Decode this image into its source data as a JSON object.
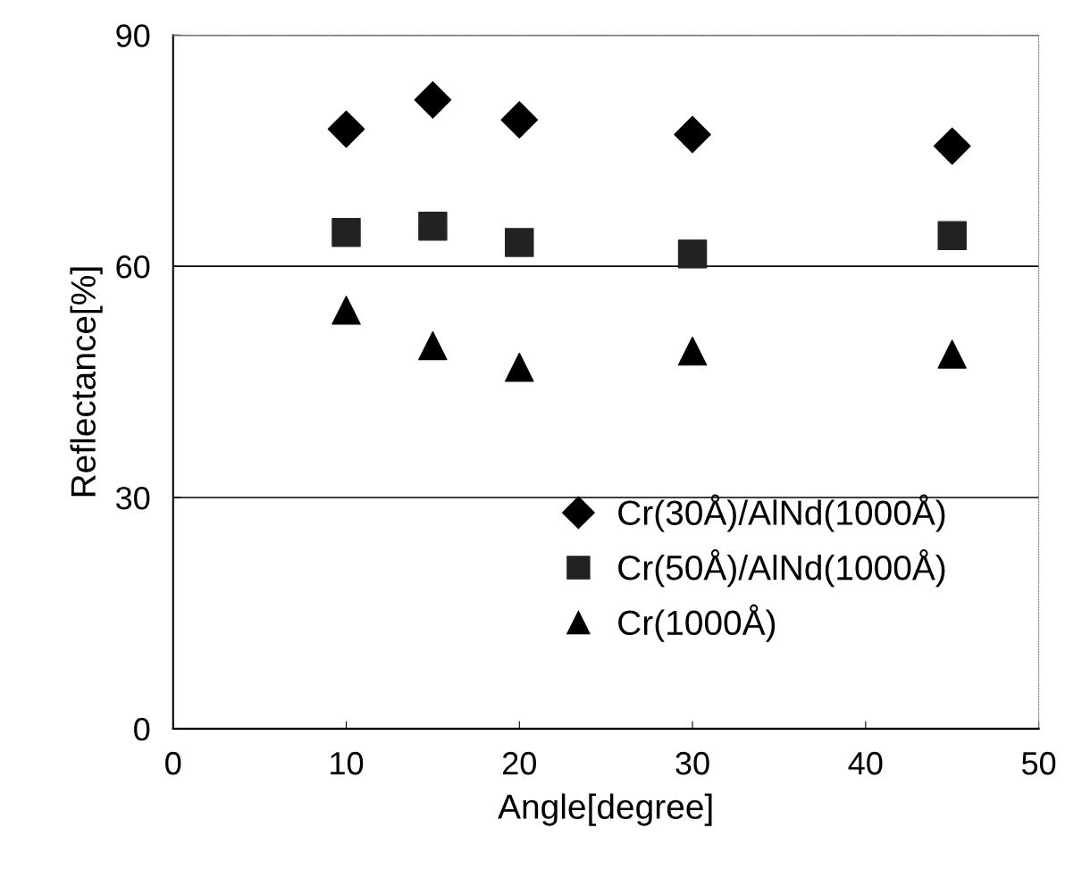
{
  "chart_data": {
    "type": "scatter",
    "xlabel": "Angle[degree]",
    "ylabel": "Reflectance[%]",
    "x": [
      10,
      15,
      20,
      30,
      45
    ],
    "series": [
      {
        "name": "Cr(30Å)/AlNd(1000Å)",
        "color": "#000000",
        "marker": "diamond",
        "values": [
          77.8,
          81.6,
          79.0,
          77.1,
          75.6
        ]
      },
      {
        "name": "Cr(50Å)/AlNd(1000Å)",
        "color": "#222222",
        "marker": "square",
        "values": [
          64.4,
          65.2,
          63.1,
          61.6,
          64.0
        ]
      },
      {
        "name": "Cr(1000Å)",
        "color": "#000000",
        "marker": "triangle",
        "values": [
          54.3,
          49.7,
          46.9,
          49.0,
          48.6
        ]
      }
    ],
    "xlim": [
      0,
      50
    ],
    "xticks": [
      0,
      10,
      20,
      30,
      40,
      50
    ],
    "ylim": [
      0,
      90
    ],
    "yticks": [
      0,
      30,
      60,
      90
    ],
    "grid": "y",
    "legend": "bottom right"
  }
}
